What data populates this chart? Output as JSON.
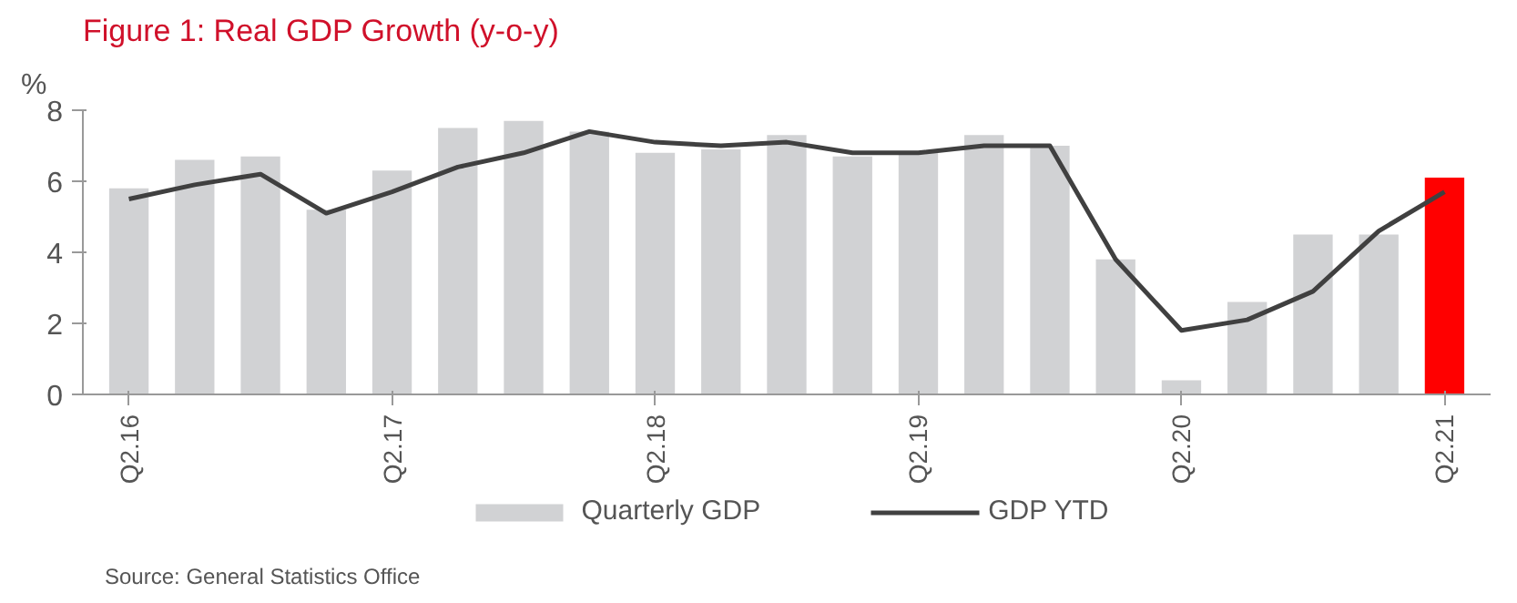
{
  "chart_data": {
    "type": "bar",
    "title": "Figure 1: Real GDP Growth (y-o-y)",
    "ylabel": "%",
    "categories": [
      "Q2.16",
      null,
      null,
      null,
      "Q2.17",
      null,
      null,
      null,
      "Q2.18",
      null,
      null,
      null,
      "Q2.19",
      null,
      null,
      null,
      "Q2.20",
      null,
      null,
      null,
      "Q2.21"
    ],
    "series": [
      {
        "name": "Quarterly GDP",
        "type": "bar",
        "color": "#d1d2d4",
        "colors": [
          "#d1d2d4",
          "#d1d2d4",
          "#d1d2d4",
          "#d1d2d4",
          "#d1d2d4",
          "#d1d2d4",
          "#d1d2d4",
          "#d1d2d4",
          "#d1d2d4",
          "#d1d2d4",
          "#d1d2d4",
          "#d1d2d4",
          "#d1d2d4",
          "#d1d2d4",
          "#d1d2d4",
          "#d1d2d4",
          "#d1d2d4",
          "#d1d2d4",
          "#d1d2d4",
          "#d1d2d4",
          "#ff0000"
        ],
        "values": [
          5.8,
          6.6,
          6.7,
          5.2,
          6.3,
          7.5,
          7.7,
          7.4,
          6.8,
          6.9,
          7.3,
          6.7,
          6.8,
          7.3,
          7.0,
          3.8,
          0.4,
          2.6,
          4.5,
          4.5,
          6.1
        ]
      },
      {
        "name": "GDP YTD",
        "type": "line",
        "color": "#404040",
        "values": [
          5.5,
          5.9,
          6.2,
          5.1,
          5.7,
          6.4,
          6.8,
          7.4,
          7.1,
          7.0,
          7.1,
          6.8,
          6.8,
          7.0,
          7.0,
          3.8,
          1.8,
          2.1,
          2.9,
          4.6,
          5.7
        ]
      }
    ],
    "ylim": [
      0,
      8
    ],
    "yticks": [
      0,
      2,
      4,
      6,
      8
    ],
    "grid": false,
    "legend": "bottom",
    "marker": "none",
    "line_style": "solid",
    "annotations": [
      "Source: General Statistics Office"
    ]
  }
}
